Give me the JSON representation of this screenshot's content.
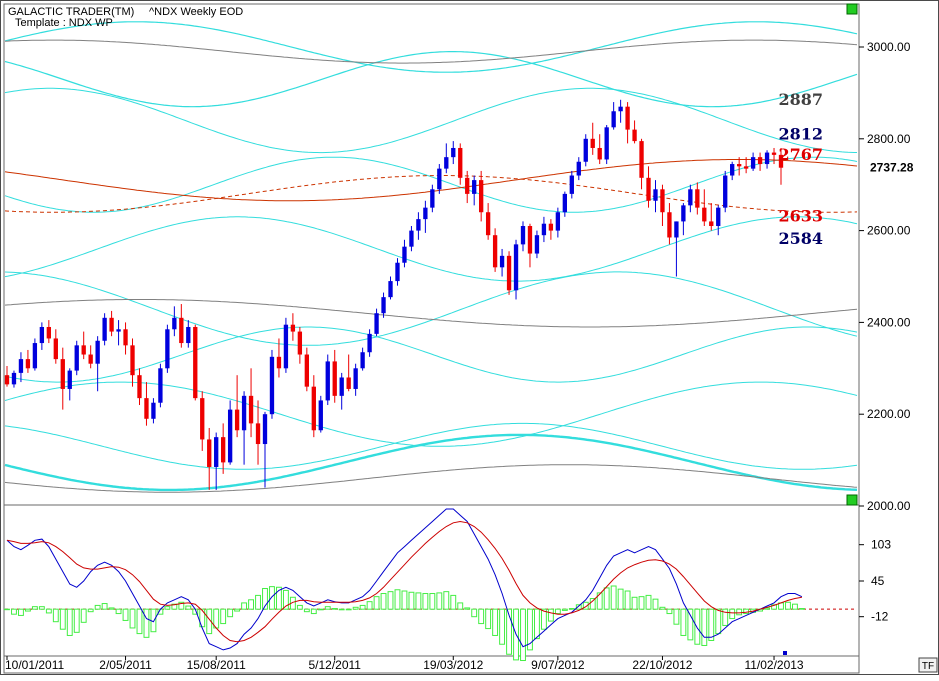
{
  "header": {
    "title": "GALACTIC TRADER(TM)",
    "symbol": "^NDX Weekly EOD",
    "template": "Template : NDX WP"
  },
  "corner_badge": "TF",
  "chart_data": [
    {
      "type": "candlestick",
      "title": "",
      "ylim": [
        2000,
        3100
      ],
      "y_ticks": [
        "3000.00",
        "2800.00",
        "2600.00",
        "2400.00",
        "2200.00",
        "2000.00"
      ],
      "y_tick_values": [
        3000,
        2800,
        2600,
        2400,
        2200,
        2000
      ],
      "last_price": "2737.28",
      "level_labels": [
        {
          "text": "2887",
          "value": 2887,
          "color": "#404040"
        },
        {
          "text": "2812",
          "value": 2812,
          "color": "#000066"
        },
        {
          "text": "2767",
          "value": 2767,
          "color": "#dd0000"
        },
        {
          "text": "2633",
          "value": 2633,
          "color": "#dd0000"
        },
        {
          "text": "2584",
          "value": 2584,
          "color": "#000066"
        }
      ],
      "colors": {
        "up": "#0000dd",
        "down": "#ee0000",
        "wave": "#33dddd",
        "red_wave": "#cc3300",
        "grey_wave": "#808080"
      },
      "candles": [
        {
          "d": "10/01/2011",
          "o": 2285,
          "h": 2305,
          "l": 2260,
          "c": 2265
        },
        {
          "o": 2265,
          "h": 2295,
          "l": 2258,
          "c": 2290
        },
        {
          "o": 2290,
          "h": 2335,
          "l": 2270,
          "c": 2320
        },
        {
          "o": 2320,
          "h": 2340,
          "l": 2290,
          "c": 2300
        },
        {
          "o": 2300,
          "h": 2365,
          "l": 2295,
          "c": 2355
        },
        {
          "o": 2355,
          "h": 2400,
          "l": 2340,
          "c": 2390
        },
        {
          "o": 2390,
          "h": 2405,
          "l": 2355,
          "c": 2365
        },
        {
          "o": 2365,
          "h": 2385,
          "l": 2310,
          "c": 2320
        },
        {
          "o": 2320,
          "h": 2345,
          "l": 2210,
          "c": 2255
        },
        {
          "o": 2255,
          "h": 2300,
          "l": 2230,
          "c": 2295
        },
        {
          "o": 2295,
          "h": 2360,
          "l": 2285,
          "c": 2350
        },
        {
          "o": 2350,
          "h": 2380,
          "l": 2320,
          "c": 2330
        },
        {
          "o": 2330,
          "h": 2350,
          "l": 2300,
          "c": 2310
        },
        {
          "o": 2310,
          "h": 2370,
          "l": 2250,
          "c": 2360
        },
        {
          "o": 2360,
          "h": 2420,
          "l": 2350,
          "c": 2410
        },
        {
          "o": 2410,
          "h": 2425,
          "l": 2370,
          "c": 2380
        },
        {
          "o": 2380,
          "h": 2405,
          "l": 2350,
          "c": 2385
        },
        {
          "d": "2/05/2011",
          "o": 2385,
          "h": 2400,
          "l": 2330,
          "c": 2350
        },
        {
          "o": 2350,
          "h": 2365,
          "l": 2260,
          "c": 2285
        },
        {
          "o": 2285,
          "h": 2300,
          "l": 2220,
          "c": 2235
        },
        {
          "o": 2235,
          "h": 2270,
          "l": 2175,
          "c": 2190
        },
        {
          "o": 2190,
          "h": 2235,
          "l": 2180,
          "c": 2225
        },
        {
          "o": 2225,
          "h": 2310,
          "l": 2215,
          "c": 2300
        },
        {
          "o": 2300,
          "h": 2395,
          "l": 2290,
          "c": 2385
        },
        {
          "o": 2385,
          "h": 2435,
          "l": 2370,
          "c": 2410
        },
        {
          "o": 2410,
          "h": 2440,
          "l": 2345,
          "c": 2355
        },
        {
          "o": 2355,
          "h": 2405,
          "l": 2345,
          "c": 2390
        },
        {
          "o": 2390,
          "h": 2395,
          "l": 2230,
          "c": 2235
        },
        {
          "o": 2235,
          "h": 2250,
          "l": 2120,
          "c": 2145
        },
        {
          "o": 2145,
          "h": 2170,
          "l": 2035,
          "c": 2085
        },
        {
          "d": "15/08/2011",
          "o": 2085,
          "h": 2160,
          "l": 2035,
          "c": 2150
        },
        {
          "o": 2150,
          "h": 2180,
          "l": 2070,
          "c": 2095
        },
        {
          "o": 2095,
          "h": 2230,
          "l": 2090,
          "c": 2210
        },
        {
          "o": 2210,
          "h": 2285,
          "l": 2150,
          "c": 2165
        },
        {
          "o": 2165,
          "h": 2250,
          "l": 2090,
          "c": 2240
        },
        {
          "o": 2240,
          "h": 2300,
          "l": 2150,
          "c": 2180
        },
        {
          "o": 2180,
          "h": 2230,
          "l": 2090,
          "c": 2135
        },
        {
          "o": 2135,
          "h": 2205,
          "l": 2040,
          "c": 2200
        },
        {
          "o": 2200,
          "h": 2340,
          "l": 2190,
          "c": 2325
        },
        {
          "o": 2325,
          "h": 2365,
          "l": 2280,
          "c": 2300
        },
        {
          "o": 2300,
          "h": 2410,
          "l": 2290,
          "c": 2395
        },
        {
          "o": 2395,
          "h": 2420,
          "l": 2360,
          "c": 2380
        },
        {
          "o": 2380,
          "h": 2390,
          "l": 2310,
          "c": 2330
        },
        {
          "o": 2330,
          "h": 2345,
          "l": 2250,
          "c": 2260
        },
        {
          "o": 2260,
          "h": 2285,
          "l": 2150,
          "c": 2165
        },
        {
          "o": 2165,
          "h": 2240,
          "l": 2160,
          "c": 2230
        },
        {
          "o": 2230,
          "h": 2330,
          "l": 2220,
          "c": 2315
        },
        {
          "d": "5/12/2011",
          "o": 2315,
          "h": 2340,
          "l": 2225,
          "c": 2240
        },
        {
          "o": 2240,
          "h": 2290,
          "l": 2210,
          "c": 2280
        },
        {
          "o": 2280,
          "h": 2330,
          "l": 2250,
          "c": 2255
        },
        {
          "o": 2255,
          "h": 2310,
          "l": 2240,
          "c": 2300
        },
        {
          "o": 2300,
          "h": 2345,
          "l": 2295,
          "c": 2335
        },
        {
          "o": 2335,
          "h": 2385,
          "l": 2325,
          "c": 2375
        },
        {
          "o": 2375,
          "h": 2430,
          "l": 2370,
          "c": 2420
        },
        {
          "o": 2420,
          "h": 2465,
          "l": 2410,
          "c": 2455
        },
        {
          "o": 2455,
          "h": 2500,
          "l": 2450,
          "c": 2490
        },
        {
          "o": 2490,
          "h": 2540,
          "l": 2480,
          "c": 2530
        },
        {
          "o": 2530,
          "h": 2580,
          "l": 2520,
          "c": 2565
        },
        {
          "o": 2565,
          "h": 2610,
          "l": 2555,
          "c": 2600
        },
        {
          "o": 2600,
          "h": 2640,
          "l": 2580,
          "c": 2625
        },
        {
          "o": 2625,
          "h": 2665,
          "l": 2595,
          "c": 2650
        },
        {
          "o": 2650,
          "h": 2700,
          "l": 2640,
          "c": 2690
        },
        {
          "o": 2690,
          "h": 2745,
          "l": 2680,
          "c": 2735
        },
        {
          "o": 2735,
          "h": 2790,
          "l": 2725,
          "c": 2760
        },
        {
          "d": "19/03/2012",
          "o": 2760,
          "h": 2795,
          "l": 2745,
          "c": 2780
        },
        {
          "o": 2780,
          "h": 2790,
          "l": 2700,
          "c": 2715
        },
        {
          "o": 2715,
          "h": 2730,
          "l": 2660,
          "c": 2680
        },
        {
          "o": 2680,
          "h": 2720,
          "l": 2655,
          "c": 2710
        },
        {
          "o": 2710,
          "h": 2730,
          "l": 2620,
          "c": 2640
        },
        {
          "o": 2640,
          "h": 2660,
          "l": 2580,
          "c": 2590
        },
        {
          "o": 2590,
          "h": 2605,
          "l": 2510,
          "c": 2520
        },
        {
          "o": 2520,
          "h": 2560,
          "l": 2500,
          "c": 2545
        },
        {
          "o": 2545,
          "h": 2555,
          "l": 2460,
          "c": 2470
        },
        {
          "o": 2470,
          "h": 2580,
          "l": 2450,
          "c": 2570
        },
        {
          "o": 2570,
          "h": 2620,
          "l": 2555,
          "c": 2610
        },
        {
          "o": 2610,
          "h": 2615,
          "l": 2520,
          "c": 2550
        },
        {
          "o": 2550,
          "h": 2600,
          "l": 2540,
          "c": 2590
        },
        {
          "o": 2590,
          "h": 2630,
          "l": 2575,
          "c": 2615
        },
        {
          "o": 2615,
          "h": 2625,
          "l": 2580,
          "c": 2600
        },
        {
          "d": "9/07/2012",
          "o": 2600,
          "h": 2650,
          "l": 2585,
          "c": 2640
        },
        {
          "o": 2640,
          "h": 2685,
          "l": 2630,
          "c": 2680
        },
        {
          "o": 2680,
          "h": 2730,
          "l": 2670,
          "c": 2720
        },
        {
          "o": 2720,
          "h": 2760,
          "l": 2710,
          "c": 2750
        },
        {
          "o": 2750,
          "h": 2810,
          "l": 2740,
          "c": 2800
        },
        {
          "o": 2800,
          "h": 2835,
          "l": 2765,
          "c": 2780
        },
        {
          "o": 2780,
          "h": 2810,
          "l": 2745,
          "c": 2755
        },
        {
          "o": 2755,
          "h": 2830,
          "l": 2745,
          "c": 2825
        },
        {
          "o": 2825,
          "h": 2880,
          "l": 2820,
          "c": 2860
        },
        {
          "o": 2860,
          "h": 2885,
          "l": 2835,
          "c": 2870
        },
        {
          "o": 2870,
          "h": 2880,
          "l": 2790,
          "c": 2820
        },
        {
          "o": 2820,
          "h": 2840,
          "l": 2790,
          "c": 2795
        },
        {
          "o": 2795,
          "h": 2800,
          "l": 2690,
          "c": 2715
        },
        {
          "o": 2715,
          "h": 2740,
          "l": 2650,
          "c": 2665
        },
        {
          "o": 2665,
          "h": 2710,
          "l": 2640,
          "c": 2690
        },
        {
          "d": "22/10/2012",
          "o": 2690,
          "h": 2700,
          "l": 2610,
          "c": 2640
        },
        {
          "o": 2640,
          "h": 2660,
          "l": 2570,
          "c": 2585
        },
        {
          "o": 2585,
          "h": 2620,
          "l": 2500,
          "c": 2620
        },
        {
          "o": 2620,
          "h": 2660,
          "l": 2590,
          "c": 2655
        },
        {
          "o": 2655,
          "h": 2700,
          "l": 2640,
          "c": 2690
        },
        {
          "o": 2690,
          "h": 2705,
          "l": 2635,
          "c": 2650
        },
        {
          "o": 2650,
          "h": 2690,
          "l": 2610,
          "c": 2620
        },
        {
          "o": 2620,
          "h": 2660,
          "l": 2600,
          "c": 2610
        },
        {
          "o": 2610,
          "h": 2655,
          "l": 2590,
          "c": 2650
        },
        {
          "o": 2650,
          "h": 2730,
          "l": 2640,
          "c": 2720
        },
        {
          "o": 2720,
          "h": 2750,
          "l": 2710,
          "c": 2745
        },
        {
          "o": 2745,
          "h": 2760,
          "l": 2720,
          "c": 2740
        },
        {
          "o": 2740,
          "h": 2760,
          "l": 2725,
          "c": 2735
        },
        {
          "o": 2735,
          "h": 2770,
          "l": 2730,
          "c": 2760
        },
        {
          "o": 2760,
          "h": 2770,
          "l": 2730,
          "c": 2745
        },
        {
          "o": 2745,
          "h": 2775,
          "l": 2735,
          "c": 2770
        },
        {
          "d": "11/02/2013",
          "o": 2770,
          "h": 2780,
          "l": 2745,
          "c": 2765
        },
        {
          "o": 2765,
          "h": 2780,
          "l": 2700,
          "c": 2737
        }
      ]
    },
    {
      "type": "line",
      "title": "",
      "ylim": [
        -70,
        160
      ],
      "y_ticks": [
        "103",
        "45",
        "-12"
      ],
      "y_tick_values": [
        103,
        45,
        -12
      ],
      "x_tick_labels": [
        "10/01/2011",
        "2/05/2011",
        "15/08/2011",
        "5/12/2011",
        "19/03/2012",
        "9/07/2012",
        "22/10/2012",
        "11/02/2013"
      ],
      "zero_line": 0,
      "series": [
        {
          "role": "fast",
          "color": "#0000cc",
          "values": [
            110,
            100,
            95,
            102,
            110,
            112,
            100,
            80,
            60,
            40,
            35,
            45,
            60,
            70,
            75,
            70,
            60,
            45,
            25,
            5,
            -15,
            -20,
            0,
            10,
            15,
            20,
            15,
            0,
            -30,
            -55,
            -60,
            -65,
            -62,
            -55,
            -40,
            -30,
            -15,
            5,
            20,
            30,
            35,
            30,
            20,
            10,
            5,
            10,
            15,
            12,
            10,
            10,
            15,
            20,
            30,
            45,
            60,
            75,
            90,
            100,
            110,
            120,
            130,
            140,
            150,
            160,
            160,
            150,
            140,
            120,
            100,
            80,
            55,
            25,
            -10,
            -40,
            -60,
            -55,
            -45,
            -35,
            -25,
            -15,
            -10,
            -5,
            5,
            15,
            30,
            50,
            70,
            85,
            90,
            95,
            90,
            95,
            100,
            95,
            80,
            65,
            40,
            10,
            -10,
            -30,
            -45,
            -45,
            -40,
            -30,
            -20,
            -15,
            -10,
            -5,
            0,
            5,
            10,
            20,
            25,
            25,
            20
          ]
        },
        {
          "role": "slow",
          "color": "#cc0000",
          "values": [
            110,
            108,
            105,
            105,
            106,
            108,
            106,
            100,
            92,
            82,
            72,
            66,
            64,
            64,
            66,
            68,
            67,
            63,
            55,
            44,
            30,
            16,
            8,
            6,
            7,
            9,
            10,
            8,
            -2,
            -16,
            -30,
            -42,
            -50,
            -52,
            -50,
            -45,
            -37,
            -28,
            -16,
            -5,
            5,
            11,
            14,
            14,
            12,
            11,
            11,
            11,
            11,
            11,
            12,
            14,
            18,
            25,
            35,
            47,
            59,
            71,
            83,
            94,
            105,
            115,
            124,
            132,
            138,
            140,
            138,
            132,
            123,
            111,
            97,
            81,
            62,
            41,
            22,
            10,
            2,
            -3,
            -6,
            -8,
            -8,
            -6,
            -2,
            4,
            13,
            24,
            36,
            48,
            58,
            66,
            71,
            75,
            78,
            79,
            77,
            72,
            64,
            52,
            39,
            26,
            13,
            4,
            -2,
            -5,
            -6,
            -6,
            -5,
            -3,
            0,
            3,
            6,
            10,
            14,
            17,
            19
          ]
        },
        {
          "role": "histogram",
          "color": "#44ee44",
          "values": [
            0,
            -8,
            -10,
            -3,
            4,
            4,
            -6,
            -20,
            -32,
            -42,
            -37,
            -21,
            -4,
            6,
            9,
            2,
            -7,
            -18,
            -30,
            -39,
            -45,
            -36,
            -8,
            4,
            8,
            11,
            5,
            -8,
            -28,
            -39,
            -30,
            -23,
            -12,
            -3,
            10,
            15,
            22,
            33,
            36,
            35,
            30,
            19,
            6,
            -4,
            -7,
            -1,
            4,
            1,
            -1,
            -1,
            3,
            6,
            12,
            20,
            25,
            28,
            31,
            29,
            27,
            26,
            25,
            25,
            26,
            28,
            22,
            10,
            2,
            -12,
            -23,
            -31,
            -42,
            -56,
            -72,
            -81,
            -82,
            -65,
            -47,
            -32,
            -19,
            -7,
            -2,
            1,
            7,
            11,
            17,
            26,
            34,
            37,
            32,
            29,
            19,
            20,
            22,
            16,
            3,
            -7,
            -24,
            -42,
            -49,
            -56,
            -58,
            -50,
            -39,
            -26,
            -15,
            -9,
            -7,
            -5,
            -3,
            2,
            7,
            10,
            11,
            8,
            1
          ]
        }
      ]
    }
  ]
}
